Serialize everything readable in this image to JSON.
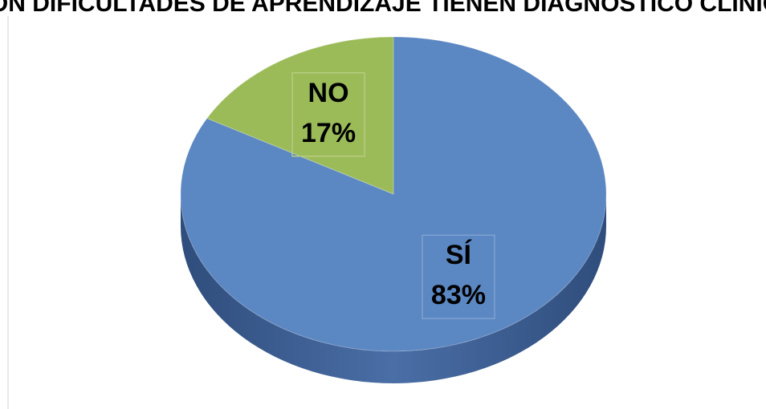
{
  "chart_data": {
    "type": "pie",
    "title": "CON DIFICULTADES DE APRENDIZAJE TIENEN DIAGNÓSTICO CLÍNICO",
    "categories": [
      "SÍ",
      "NO"
    ],
    "values": [
      83,
      17
    ],
    "value_labels": [
      "83%",
      "17%"
    ],
    "colors": [
      "#5b87c2",
      "#9bbb59"
    ]
  }
}
